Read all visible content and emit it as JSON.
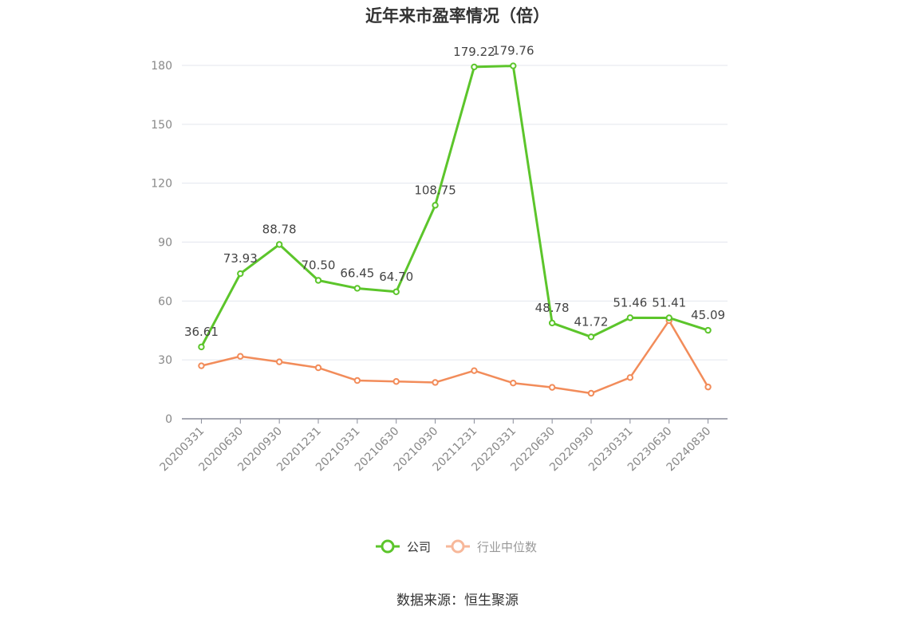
{
  "chart_data": {
    "type": "line",
    "title": "近年来市盈率情况（倍）",
    "categories": [
      "20200331",
      "20200630",
      "20200930",
      "20201231",
      "20210331",
      "20210630",
      "20210930",
      "20211231",
      "20220331",
      "20220630",
      "20220930",
      "20230331",
      "20230630",
      "20240830"
    ],
    "series": [
      {
        "name": "公司",
        "color": "#5cc52b",
        "values": [
          36.61,
          73.93,
          88.78,
          70.5,
          66.45,
          64.7,
          108.75,
          179.22,
          179.76,
          48.78,
          41.72,
          51.46,
          51.41,
          45.09
        ],
        "labels": [
          "36.61",
          "73.93",
          "88.78",
          "70.50",
          "66.45",
          "64.70",
          "108.75",
          "179.22",
          "179.76",
          "48.78",
          "41.72",
          "51.46",
          "51.41",
          "45.09"
        ]
      },
      {
        "name": "行业中位数",
        "color": "#f28c5a",
        "values": [
          27.0,
          31.8,
          29.0,
          26.0,
          19.5,
          19.0,
          18.5,
          24.5,
          18.2,
          16.0,
          13.0,
          21.0,
          50.0,
          16.2
        ]
      }
    ],
    "yticks": [
      "0",
      "30",
      "60",
      "90",
      "120",
      "150",
      "180"
    ],
    "ylim": [
      0,
      180
    ],
    "grid": true,
    "legend_position": "bottom"
  },
  "source": "数据来源：恒生聚源"
}
